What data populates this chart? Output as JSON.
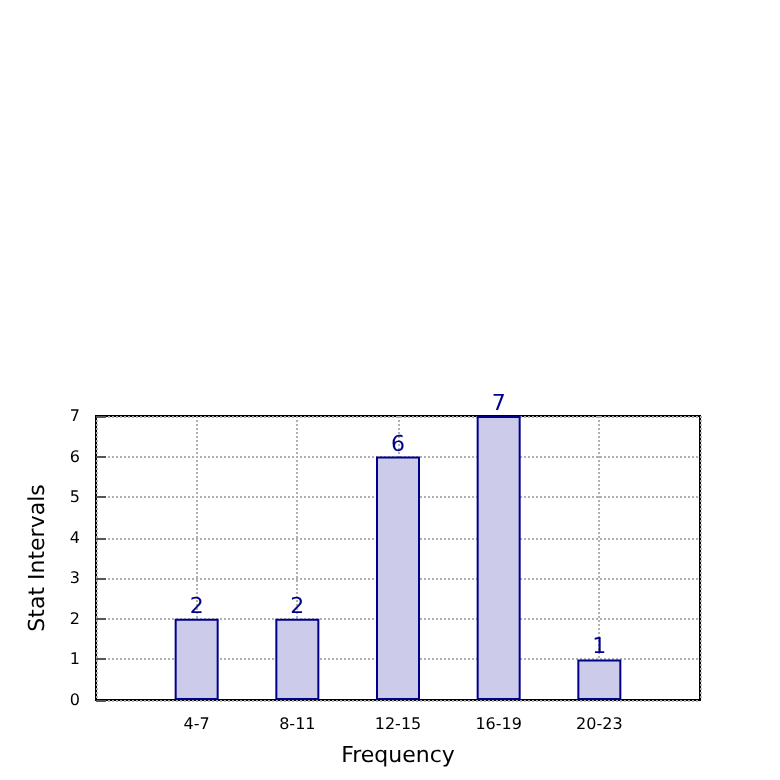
{
  "chart_data": {
    "type": "bar",
    "xlabel": "Frequency",
    "ylabel": "Stat Intervals",
    "categories": [
      "4-7",
      "8-11",
      "12-15",
      "16-19",
      "20-23"
    ],
    "values": [
      2,
      2,
      6,
      7,
      1
    ],
    "color": "#ccccea",
    "ylim": [
      0,
      7
    ],
    "yticks": [
      0,
      1,
      2,
      3,
      4,
      5,
      6,
      7
    ],
    "grid": true,
    "data_labels": true
  }
}
